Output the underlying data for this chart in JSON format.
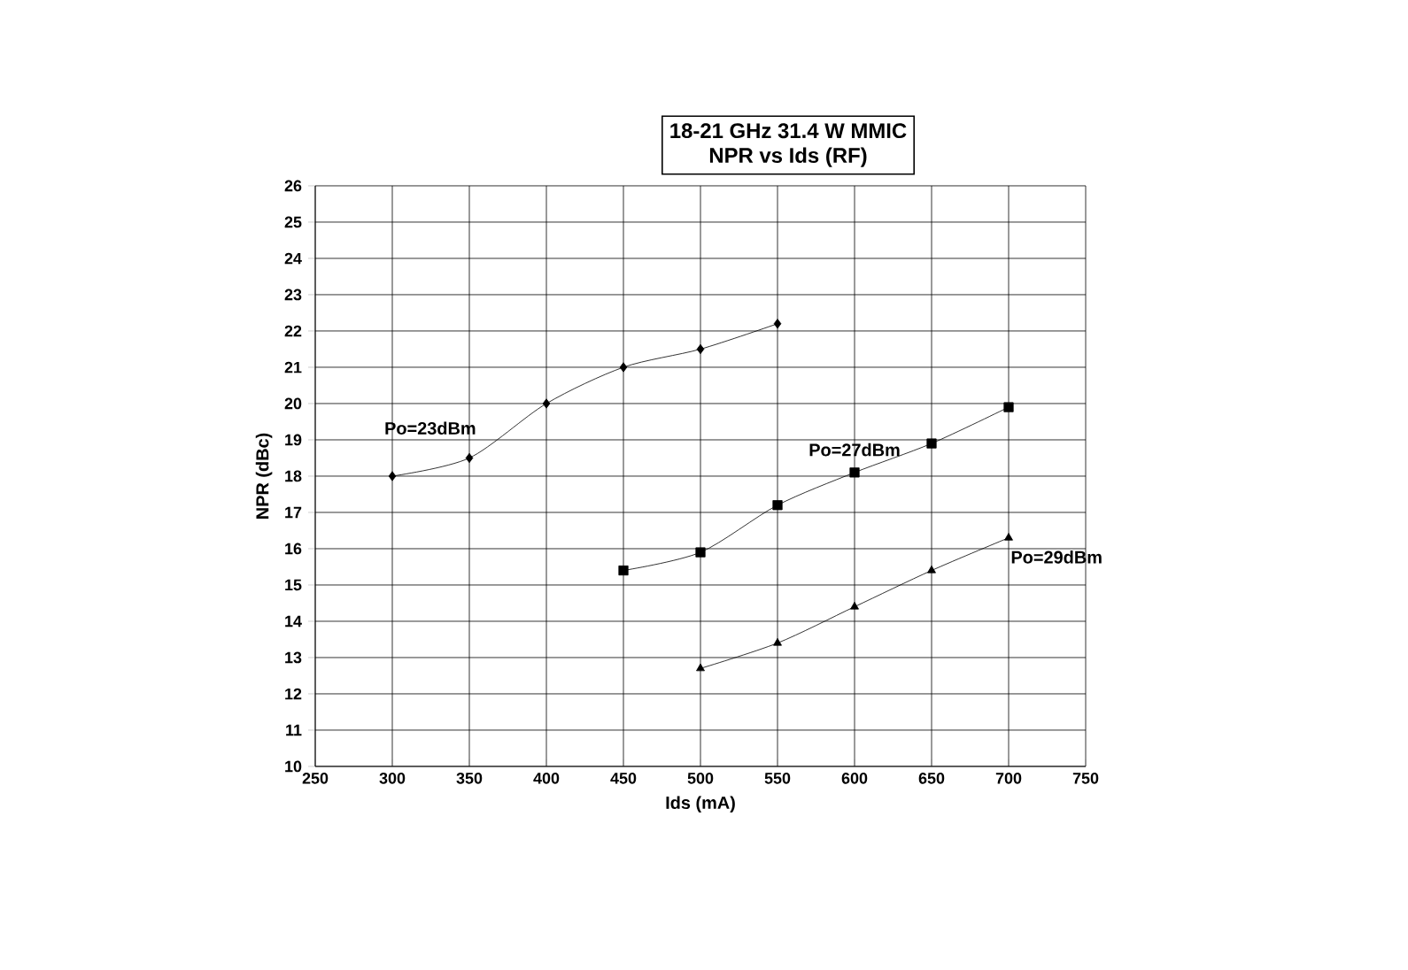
{
  "chart_data": {
    "type": "line",
    "title": "18-21 GHz 31.4 W MMIC",
    "subtitle": "NPR vs Ids (RF)",
    "xlabel": "Ids (mA)",
    "ylabel": "NPR (dBc)",
    "xlim": [
      250,
      750
    ],
    "xticks": [
      250,
      300,
      350,
      400,
      450,
      500,
      550,
      600,
      650,
      700,
      750
    ],
    "ylim": [
      10,
      26
    ],
    "yticks": [
      10,
      11,
      12,
      13,
      14,
      15,
      16,
      17,
      18,
      19,
      20,
      21,
      22,
      23,
      24,
      25,
      26
    ],
    "grid": true,
    "legend": false,
    "series": [
      {
        "name": "Po=23dBm",
        "color": "#000000",
        "marker": "diamond",
        "x": [
          300,
          350,
          400,
          450,
          500,
          550
        ],
        "values": [
          18,
          18.5,
          20,
          21,
          21.5,
          22.2
        ]
      },
      {
        "name": "Po=27dBm",
        "color": "#000000",
        "marker": "square",
        "x": [
          450,
          500,
          550,
          600,
          650,
          700
        ],
        "values": [
          15.4,
          15.9,
          17.2,
          18.1,
          18.9,
          19.9
        ]
      },
      {
        "name": "Po=29dBm",
        "color": "#000000",
        "marker": "triangle",
        "x": [
          500,
          550,
          600,
          650,
          700
        ],
        "values": [
          12.7,
          13.4,
          14.4,
          15.4,
          16.3
        ]
      }
    ]
  }
}
